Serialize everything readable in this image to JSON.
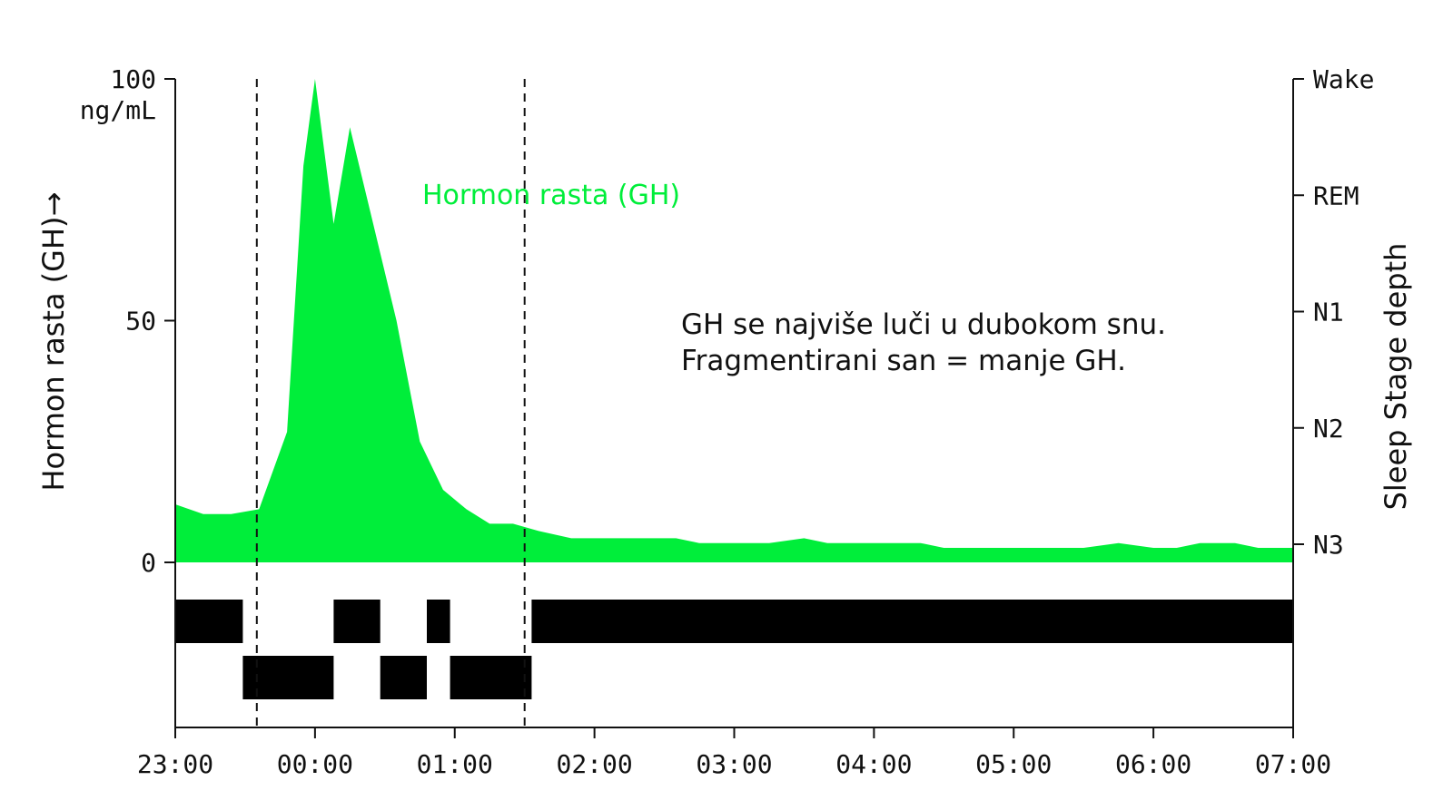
{
  "chart_data": {
    "type": "area",
    "x_axis": {
      "tick_labels": [
        "23:00",
        "00:00",
        "01:00",
        "02:00",
        "03:00",
        "04:00",
        "05:00",
        "06:00",
        "07:00"
      ],
      "range_hours": [
        23,
        31
      ]
    },
    "y_axis_left": {
      "label": "Hormon rasta (GH)",
      "arrow": "→",
      "unit": "ng/mL",
      "tick_labels": [
        "100",
        "50",
        "0"
      ],
      "ylim": [
        0,
        100
      ]
    },
    "y_axis_right": {
      "label": "Sleep Stage depth",
      "tick_labels": [
        "Wake",
        "REM",
        "N1",
        "N2",
        "N3"
      ]
    },
    "series": [
      {
        "name": "Hormon rasta (GH)",
        "color": "#00ee3a",
        "x": [
          "23:00",
          "23:12",
          "23:24",
          "23:36",
          "23:48",
          "23:55",
          "24:00",
          "24:08",
          "24:15",
          "24:25",
          "24:35",
          "24:45",
          "24:55",
          "25:05",
          "25:15",
          "25:25",
          "25:36",
          "25:50",
          "26:05",
          "26:20",
          "26:35",
          "26:45",
          "27:00",
          "27:15",
          "27:30",
          "27:40",
          "27:50",
          "28:00",
          "28:10",
          "28:20",
          "28:30",
          "28:40",
          "28:50",
          "29:00",
          "29:15",
          "29:30",
          "29:45",
          "30:00",
          "30:10",
          "30:20",
          "30:35",
          "30:45",
          "31:00"
        ],
        "values": [
          12,
          10,
          10,
          11,
          27,
          82,
          100,
          70,
          90,
          70,
          50,
          25,
          15,
          11,
          8,
          8,
          6.5,
          5,
          5,
          5,
          5,
          4,
          4,
          4,
          5,
          4,
          4,
          4,
          4,
          4,
          3,
          3,
          3,
          3,
          3,
          3,
          4,
          3,
          3,
          4,
          4,
          3,
          3
        ]
      }
    ],
    "sleep_stages": {
      "name": "Sleep Stage depth",
      "segments": [
        {
          "start": "23:00",
          "end": "23:29",
          "stage": "N1"
        },
        {
          "start": "23:29",
          "end": "24:08",
          "stage": "N2"
        },
        {
          "start": "24:08",
          "end": "24:28",
          "stage": "N1"
        },
        {
          "start": "24:28",
          "end": "24:48",
          "stage": "N2"
        },
        {
          "start": "24:48",
          "end": "24:58",
          "stage": "N1"
        },
        {
          "start": "24:58",
          "end": "25:33",
          "stage": "N2"
        },
        {
          "start": "25:33",
          "end": "31:00",
          "stage": "N1"
        }
      ]
    },
    "reference_lines": [
      {
        "x": "23:35",
        "style": "dashed"
      },
      {
        "x": "25:30",
        "style": "dashed"
      }
    ],
    "annotation": [
      "GH se najviše luči u dubokom snu.",
      "Fragmentirani san = manje GH."
    ],
    "grid": false,
    "legend": "inline-label"
  }
}
